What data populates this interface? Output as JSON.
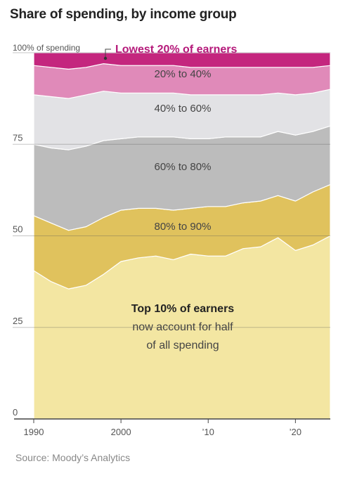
{
  "title": "Share of spending, by income group",
  "source": "Source: Moody’s Analytics",
  "chart_data": {
    "type": "area",
    "stacked": true,
    "x": [
      1990,
      1992,
      1994,
      1996,
      1998,
      2000,
      2002,
      2004,
      2006,
      2008,
      2010,
      2012,
      2014,
      2016,
      2018,
      2020,
      2022,
      2024
    ],
    "ylim": [
      0,
      100
    ],
    "xlim": [
      1990,
      2024
    ],
    "yticks": [
      "0",
      "25",
      "50",
      "75",
      "100% of spending"
    ],
    "ytick_values": [
      0,
      25,
      50,
      75,
      100
    ],
    "xticks": [
      "1990",
      "2000",
      "’10",
      "’20"
    ],
    "xtick_values": [
      1990,
      2000,
      2010,
      2020
    ],
    "grid": true,
    "series": [
      {
        "name": "Top 10% of earners",
        "color": "#f3e6a2",
        "values": [
          40.5,
          37.5,
          35.5,
          36.5,
          39.5,
          43.0,
          44.0,
          44.5,
          43.5,
          45.0,
          44.5,
          44.5,
          46.5,
          47.0,
          49.5,
          46.0,
          47.5,
          50.0
        ]
      },
      {
        "name": "80% to 90%",
        "color": "#e0c25d",
        "values": [
          15.0,
          16.0,
          16.0,
          16.0,
          15.5,
          14.0,
          13.5,
          13.0,
          13.5,
          12.5,
          13.5,
          13.5,
          12.5,
          12.5,
          11.5,
          13.5,
          14.5,
          14.0
        ]
      },
      {
        "name": "60% to 80%",
        "color": "#bcbcbc",
        "values": [
          19.5,
          20.5,
          22.0,
          22.0,
          21.0,
          19.5,
          19.5,
          19.5,
          20.0,
          19.0,
          18.5,
          19.0,
          18.0,
          17.5,
          17.5,
          18.0,
          16.5,
          16.0
        ]
      },
      {
        "name": "40% to 60%",
        "color": "#e2e2e5",
        "values": [
          13.5,
          14.0,
          14.0,
          14.0,
          13.5,
          12.5,
          12.0,
          12.0,
          12.0,
          12.0,
          12.0,
          11.5,
          11.5,
          11.5,
          10.5,
          11.0,
          10.5,
          10.0
        ]
      },
      {
        "name": "20% to 40%",
        "color": "#e08ab9",
        "values": [
          8.0,
          8.0,
          8.0,
          7.5,
          7.5,
          7.5,
          7.5,
          7.5,
          7.5,
          7.5,
          7.5,
          7.5,
          7.5,
          7.5,
          7.0,
          7.5,
          7.0,
          6.5
        ]
      },
      {
        "name": "Lowest 20% of earners",
        "color": "#c4267e",
        "values": [
          3.5,
          4.0,
          4.5,
          4.0,
          3.0,
          3.5,
          3.5,
          3.5,
          3.5,
          4.0,
          4.0,
          4.0,
          4.0,
          4.0,
          4.0,
          4.0,
          4.0,
          3.5
        ]
      }
    ],
    "annotation": {
      "bold": "Top 10% of earners",
      "line2": "now account for half",
      "line3": "of all spending"
    }
  }
}
